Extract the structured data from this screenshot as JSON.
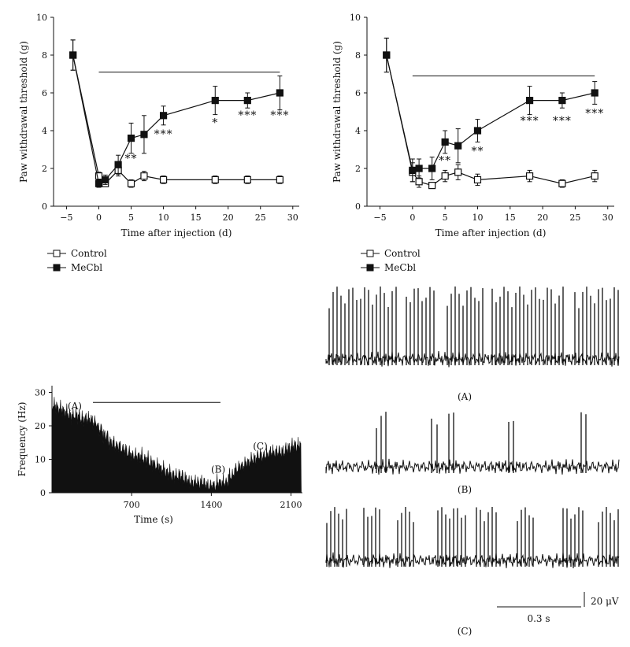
{
  "chart_data": [
    {
      "type": "line",
      "panel": "top-left",
      "ylabel": "Paw withdrawal threshold (g)",
      "xlabel": "Time after injection (d)",
      "xlim": [
        -7,
        31
      ],
      "ylim": [
        0,
        10
      ],
      "xticks": [
        -5,
        0,
        5,
        10,
        15,
        20,
        25,
        30
      ],
      "yticks": [
        0,
        2,
        4,
        6,
        8,
        10
      ],
      "bar_line": {
        "from": 0,
        "to": 28,
        "y": 7.1
      },
      "legend": [
        "Control",
        "MeCbl"
      ],
      "legend_placement": "bottom-left",
      "series": [
        {
          "name": "Control",
          "marker": "open-square",
          "x": [
            -4,
            0,
            1,
            3,
            5,
            7,
            10,
            18,
            23,
            28
          ],
          "y": [
            8.0,
            1.6,
            1.2,
            1.9,
            1.2,
            1.6,
            1.4,
            1.4,
            1.4,
            1.4
          ],
          "err": [
            0.8,
            0.2,
            0.15,
            0.3,
            0.2,
            0.25,
            0.2,
            0.2,
            0.2,
            0.2
          ]
        },
        {
          "name": "MeCbl",
          "marker": "filled-square",
          "x": [
            -4,
            0,
            1,
            3,
            5,
            7,
            10,
            18,
            23,
            28
          ],
          "y": [
            8.0,
            1.2,
            1.4,
            2.2,
            3.6,
            3.8,
            4.8,
            5.6,
            5.6,
            6.0
          ],
          "err": [
            0.8,
            0.2,
            0.25,
            0.5,
            0.8,
            1.0,
            0.5,
            0.75,
            0.4,
            0.9
          ]
        }
      ],
      "annotations": [
        {
          "x": 5,
          "y": 2.5,
          "text": "**"
        },
        {
          "x": 10,
          "y": 3.8,
          "text": "***"
        },
        {
          "x": 18,
          "y": 4.4,
          "text": "*"
        },
        {
          "x": 23,
          "y": 4.8,
          "text": "***"
        },
        {
          "x": 28,
          "y": 4.8,
          "text": "***"
        }
      ]
    },
    {
      "type": "line",
      "panel": "top-right",
      "ylabel": "Paw withdrawal threshold (g)",
      "xlabel": "Time after injection (d)",
      "xlim": [
        -7,
        31
      ],
      "ylim": [
        0,
        10
      ],
      "xticks": [
        -5,
        0,
        5,
        10,
        15,
        20,
        25,
        30
      ],
      "yticks": [
        0,
        2,
        4,
        6,
        8,
        10
      ],
      "bar_line": {
        "from": 0,
        "to": 28,
        "y": 6.9
      },
      "legend": [
        "Control",
        "MeCbl"
      ],
      "legend_placement": "bottom-left",
      "series": [
        {
          "name": "Control",
          "marker": "open-square",
          "x": [
            -4,
            0,
            1,
            3,
            5,
            7,
            10,
            18,
            23,
            28
          ],
          "y": [
            8.0,
            1.8,
            1.3,
            1.1,
            1.6,
            1.8,
            1.4,
            1.6,
            1.2,
            1.6
          ],
          "err": [
            0.9,
            0.5,
            0.3,
            0.15,
            0.3,
            0.4,
            0.3,
            0.3,
            0.2,
            0.3
          ]
        },
        {
          "name": "MeCbl",
          "marker": "filled-square",
          "x": [
            -4,
            0,
            1,
            3,
            5,
            7,
            10,
            18,
            23,
            28
          ],
          "y": [
            8.0,
            1.9,
            2.0,
            2.0,
            3.4,
            3.2,
            4.0,
            5.6,
            5.6,
            6.0
          ],
          "err": [
            0.9,
            0.6,
            0.5,
            0.6,
            0.6,
            0.9,
            0.6,
            0.75,
            0.4,
            0.6
          ]
        }
      ],
      "annotations": [
        {
          "x": 5,
          "y": 2.4,
          "text": "**"
        },
        {
          "x": 10,
          "y": 2.9,
          "text": "**"
        },
        {
          "x": 18,
          "y": 4.5,
          "text": "***"
        },
        {
          "x": 23,
          "y": 4.5,
          "text": "***"
        },
        {
          "x": 28,
          "y": 4.9,
          "text": "***"
        }
      ]
    },
    {
      "type": "area",
      "panel": "bottom-left",
      "ylabel": "Frequency (Hz)",
      "xlabel": "Time (s)",
      "xlim": [
        0,
        2200
      ],
      "ylim": [
        0,
        32
      ],
      "xticks": [
        700,
        1400,
        2100
      ],
      "yticks": [
        0,
        10,
        20,
        30
      ],
      "bar_line": {
        "from": 360,
        "to": 1480,
        "y": 27
      },
      "x": [
        0,
        50,
        100,
        150,
        200,
        250,
        300,
        350,
        400,
        450,
        500,
        550,
        600,
        650,
        700,
        750,
        800,
        850,
        900,
        950,
        1000,
        1050,
        1100,
        1150,
        1200,
        1250,
        1300,
        1350,
        1400,
        1450,
        1500,
        1550,
        1600,
        1650,
        1700,
        1750,
        1800,
        1850,
        1900,
        1950,
        2000,
        2050,
        2100,
        2150
      ],
      "y": [
        26,
        25,
        24,
        23,
        23,
        22,
        22,
        21,
        19,
        17,
        15,
        14,
        13,
        12,
        11,
        11,
        10,
        9,
        8,
        7,
        6,
        5,
        5,
        4,
        3,
        3,
        3,
        2,
        2,
        3,
        3,
        5,
        7,
        8,
        9,
        10,
        11,
        11,
        12,
        12,
        12,
        13,
        14,
        14
      ],
      "annotations": [
        {
          "x": 200,
          "y": 25,
          "text": "(A)"
        },
        {
          "x": 1460,
          "y": 6,
          "text": "(B)"
        },
        {
          "x": 1830,
          "y": 13,
          "text": "(C)"
        }
      ]
    }
  ],
  "traces": [
    {
      "id": "A",
      "label": "(A)"
    },
    {
      "id": "B",
      "label": "(B)"
    },
    {
      "id": "C",
      "label": "(C)"
    }
  ],
  "scale_bar": {
    "time_label": "0.3 s",
    "amp_label": "20 μV"
  }
}
